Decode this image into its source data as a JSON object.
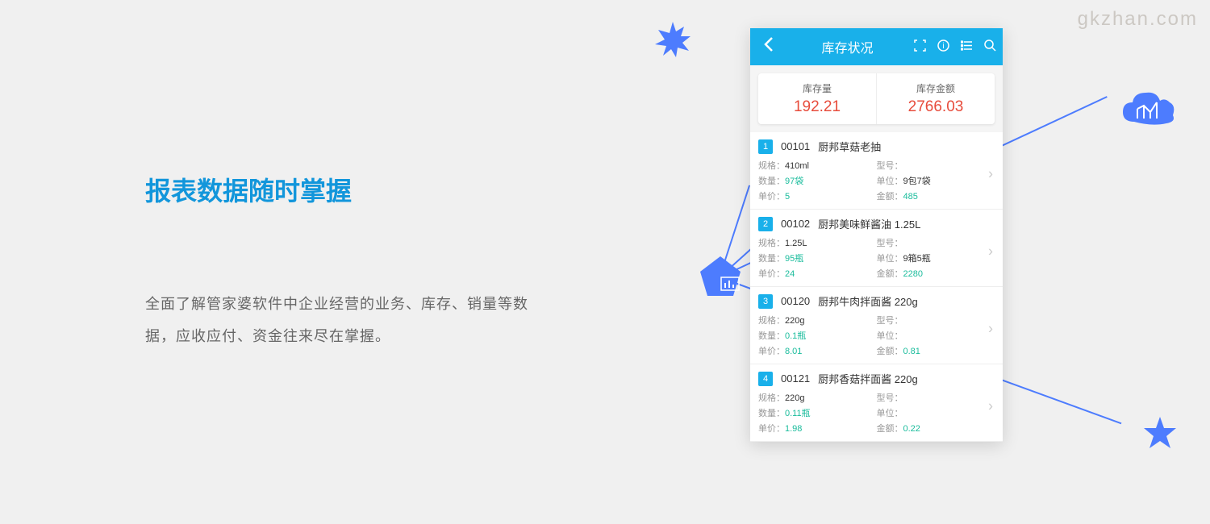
{
  "watermark": "gkzhan.com",
  "heading": "报表数据随时掌握",
  "description": "全面了解管家婆软件中企业经营的业务、库存、销量等数据，应收应付、资金往来尽在掌握。",
  "phone": {
    "title": "库存状况",
    "summary": [
      {
        "label": "库存量",
        "value": "192.21"
      },
      {
        "label": "库存金额",
        "value": "2766.03"
      }
    ],
    "fields": {
      "spec": "规格：",
      "model": "型号：",
      "qty": "数量：",
      "unit": "单位：",
      "price": "单价：",
      "amount": "金额："
    },
    "items": [
      {
        "num": "1",
        "code": "00101",
        "name": "厨邦草菇老抽",
        "spec": "410ml",
        "model": "",
        "qty": "97袋",
        "unit": "9包7袋",
        "price": "5",
        "amount": "485"
      },
      {
        "num": "2",
        "code": "00102",
        "name": "厨邦美味鲜酱油 1.25L",
        "spec": "1.25L",
        "model": "",
        "qty": "95瓶",
        "unit": "9箱5瓶",
        "price": "24",
        "amount": "2280"
      },
      {
        "num": "3",
        "code": "00120",
        "name": "厨邦牛肉拌面酱 220g",
        "spec": "220g",
        "model": "",
        "qty": "0.1瓶",
        "unit": "",
        "price": "8.01",
        "amount": "0.81"
      },
      {
        "num": "4",
        "code": "00121",
        "name": "厨邦香菇拌面酱 220g",
        "spec": "220g",
        "model": "",
        "qty": "0.11瓶",
        "unit": "",
        "price": "1.98",
        "amount": "0.22"
      }
    ]
  },
  "colors": {
    "primary": "#19b0ea",
    "accent": "#4d7cfe",
    "red": "#e74c3c",
    "teal": "#1abc9c",
    "bg": "#f0f0f0"
  }
}
